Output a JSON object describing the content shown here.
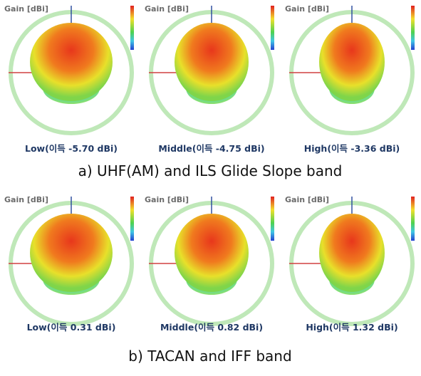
{
  "rows": [
    {
      "caption": "a) UHF(AM) and ILS Glide Slope band",
      "panels": [
        {
          "gain_label": "Gain [dBi]",
          "label": "Low(이득 -5.70 dBi)"
        },
        {
          "gain_label": "Gain [dBi]",
          "label": "Middle(이득 -4.75 dBi)"
        },
        {
          "gain_label": "Gain [dBi]",
          "label": "High(이득 -3.36 dBi)"
        }
      ]
    },
    {
      "caption": "b) TACAN and IFF band",
      "panels": [
        {
          "gain_label": "Gain [dBi]",
          "label": "Low(이득 0.31 dBi)"
        },
        {
          "gain_label": "Gain [dBi]",
          "label": "Middle(이득 0.82 dBi)"
        },
        {
          "gain_label": "Gain [dBi]",
          "label": "High(이득 1.32 dBi)"
        }
      ]
    }
  ]
}
